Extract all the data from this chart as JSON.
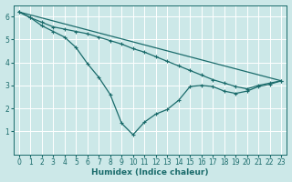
{
  "background_color": "#cce8e8",
  "grid_color": "#ffffff",
  "line_color": "#1a6b6b",
  "xlabel": "Humidex (Indice chaleur)",
  "ylim": [
    0,
    6.5
  ],
  "xlim": [
    -0.5,
    23.5
  ],
  "yticks": [
    1,
    2,
    3,
    4,
    5,
    6
  ],
  "xticks": [
    0,
    1,
    2,
    3,
    4,
    5,
    6,
    7,
    8,
    9,
    10,
    11,
    12,
    13,
    14,
    15,
    16,
    17,
    18,
    19,
    20,
    21,
    22,
    23
  ],
  "line1_x": [
    0,
    1,
    2,
    3,
    4,
    5,
    6,
    7,
    8,
    9,
    10,
    11,
    12,
    13,
    14,
    15,
    16,
    17,
    18,
    19,
    20,
    21,
    22,
    23
  ],
  "line1_y": [
    6.2,
    5.95,
    5.6,
    5.35,
    5.1,
    4.65,
    3.95,
    3.35,
    2.6,
    1.35,
    0.85,
    1.4,
    1.75,
    1.95,
    2.35,
    2.95,
    3.0,
    2.95,
    2.75,
    2.65,
    2.75,
    2.95,
    3.05,
    3.2
  ],
  "line2_x": [
    0,
    1,
    2,
    3,
    4,
    5,
    6,
    7,
    8,
    9,
    10,
    11,
    12,
    13,
    14,
    15,
    16,
    17,
    18,
    19,
    20,
    21,
    22,
    23
  ],
  "line2_y": [
    6.2,
    5.95,
    5.75,
    5.55,
    5.45,
    5.35,
    5.25,
    5.1,
    4.95,
    4.8,
    4.6,
    4.45,
    4.25,
    4.05,
    3.85,
    3.65,
    3.45,
    3.25,
    3.1,
    2.95,
    2.85,
    3.0,
    3.1,
    3.2
  ],
  "line3_x": [
    0,
    23
  ],
  "line3_y": [
    6.2,
    3.2
  ]
}
